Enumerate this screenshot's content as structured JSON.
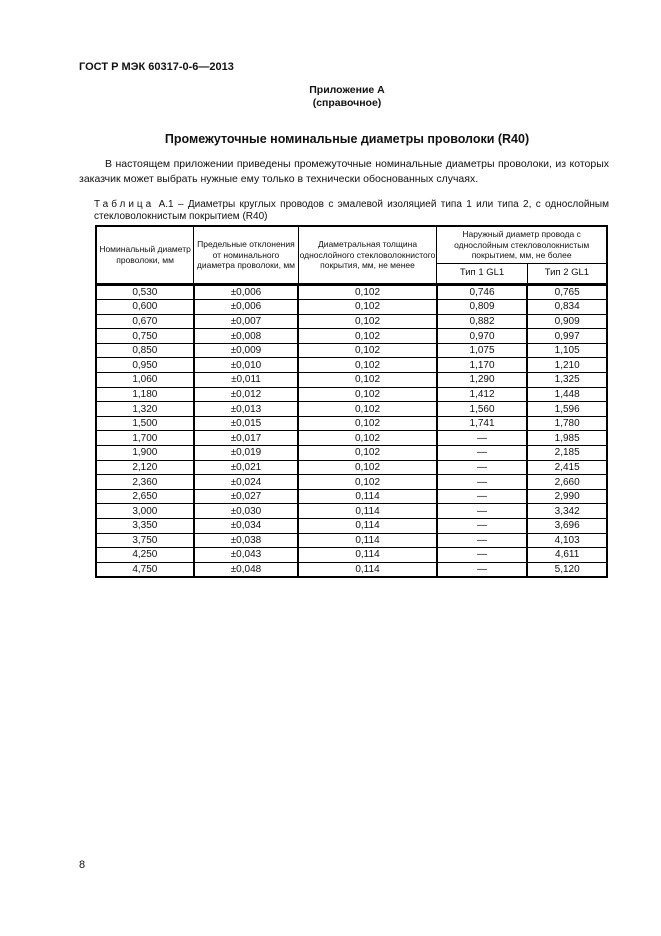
{
  "header": {
    "standard": "ГОСТ Р МЭК 60317-0-6—2013"
  },
  "appendix": {
    "title": "Приложение А",
    "note": "(справочное)"
  },
  "section_title": "Промежуточные номинальные диаметры проволоки (R40)",
  "paragraph": "В настоящем приложении приведены промежуточные номинальные диаметры проволоки, из которых заказчик может выбрать нужные ему только в технически обоснованных случаях.",
  "table": {
    "caption_word": "Таблица",
    "caption": "А.1 – Диаметры круглых проводов с эмалевой изоляцией типа 1 или типа 2, с однослойным стекловолокнистым покрытием (R40)",
    "headers": [
      "Номинальный диаметр проволоки, мм",
      "Предельные отклонения от номинального диаметра проволоки, мм",
      "Диаметральная толщина однослойного стекловолокнистого покрытия, мм, не менее",
      "Наружный диаметр провода с однослойным стекловолокнистым покрытием, мм, не более"
    ],
    "subheaders": [
      "Тип 1 GL1",
      "Тип 2 GL1"
    ],
    "rows": [
      [
        "0,530",
        "±0,006",
        "0,102",
        "0,746",
        "0,765"
      ],
      [
        "0,600",
        "±0,006",
        "0,102",
        "0,809",
        "0,834"
      ],
      [
        "0,670",
        "±0,007",
        "0,102",
        "0,882",
        "0,909"
      ],
      [
        "0,750",
        "±0,008",
        "0,102",
        "0,970",
        "0,997"
      ],
      [
        "0,850",
        "±0,009",
        "0,102",
        "1,075",
        "1,105"
      ],
      [
        "0,950",
        "±0,010",
        "0,102",
        "1,170",
        "1,210"
      ],
      [
        "1,060",
        "±0,011",
        "0,102",
        "1,290",
        "1,325"
      ],
      [
        "1,180",
        "±0,012",
        "0,102",
        "1,412",
        "1,448"
      ],
      [
        "1,320",
        "±0,013",
        "0,102",
        "1,560",
        "1,596"
      ],
      [
        "1,500",
        "±0,015",
        "0,102",
        "1,741",
        "1,780"
      ],
      [
        "1,700",
        "±0,017",
        "0,102",
        "—",
        "1,985"
      ],
      [
        "1,900",
        "±0,019",
        "0,102",
        "—",
        "2,185"
      ],
      [
        "2,120",
        "±0,021",
        "0,102",
        "—",
        "2,415"
      ],
      [
        "2,360",
        "±0,024",
        "0,102",
        "—",
        "2,660"
      ],
      [
        "2,650",
        "±0,027",
        "0,114",
        "—",
        "2,990"
      ],
      [
        "3,000",
        "±0,030",
        "0,114",
        "—",
        "3,342"
      ],
      [
        "3,350",
        "±0,034",
        "0,114",
        "—",
        "3,696"
      ],
      [
        "3,750",
        "±0,038",
        "0,114",
        "—",
        "4,103"
      ],
      [
        "4,250",
        "±0,043",
        "0,114",
        "—",
        "4,611"
      ],
      [
        "4,750",
        "±0,048",
        "0,114",
        "—",
        "5,120"
      ]
    ]
  },
  "page_number": "8"
}
